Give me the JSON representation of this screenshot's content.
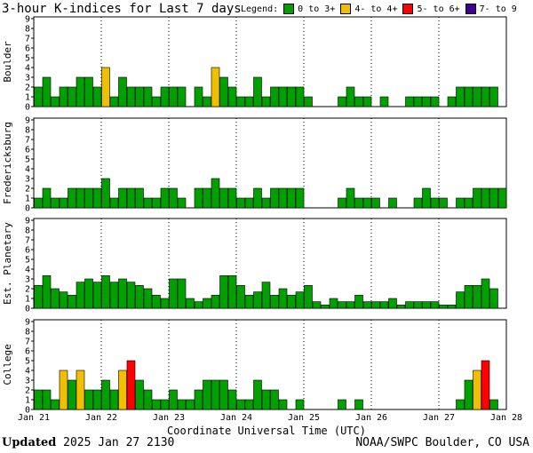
{
  "title": "3-hour K-indices for Last 7 days",
  "legend": {
    "label": "Legend:",
    "items": [
      {
        "label": "0 to 3+",
        "color": "#00a000"
      },
      {
        "label": "4- to 4+",
        "color": "#f0c000"
      },
      {
        "label": "5- to 6+",
        "color": "#ff0000"
      },
      {
        "label": "7- to 9",
        "color": "#400090"
      }
    ]
  },
  "footer": {
    "updated_label": "Updated",
    "updated_value": "2025 Jan 27 2130",
    "source": "NOAA/SWPC Boulder, CO USA"
  },
  "chart_data": [
    {
      "type": "bar",
      "ylabel": "Boulder",
      "ylim": [
        0,
        9
      ],
      "yticks": [
        "0",
        "1",
        "2",
        "3",
        "4",
        "5",
        "6",
        "7",
        "8",
        "9"
      ],
      "xticks": [
        "Jan 21",
        "Jan 22",
        "Jan 23",
        "Jan 24",
        "Jan 25",
        "Jan 26",
        "Jan 27",
        "Jan 28"
      ],
      "values": [
        2,
        3,
        1,
        2,
        2,
        3,
        3,
        2,
        4,
        1,
        3,
        2,
        2,
        2,
        1,
        2,
        2,
        2,
        0,
        2,
        1,
        4,
        3,
        2,
        1,
        1,
        3,
        1,
        2,
        2,
        2,
        2,
        1,
        0,
        0,
        0,
        1,
        2,
        1,
        1,
        0,
        1,
        0,
        0,
        1,
        1,
        1,
        1,
        0,
        1,
        2,
        2,
        2,
        2,
        2,
        0
      ]
    },
    {
      "type": "bar",
      "ylabel": "Fredericksburg",
      "ylim": [
        0,
        9
      ],
      "yticks": [
        "0",
        "1",
        "2",
        "3",
        "4",
        "5",
        "6",
        "7",
        "8",
        "9"
      ],
      "xticks": [
        "Jan 21",
        "Jan 22",
        "Jan 23",
        "Jan 24",
        "Jan 25",
        "Jan 26",
        "Jan 27",
        "Jan 28"
      ],
      "values": [
        1,
        2,
        1,
        1,
        2,
        2,
        2,
        2,
        3,
        1,
        2,
        2,
        2,
        1,
        1,
        2,
        2,
        1,
        0,
        2,
        2,
        3,
        2,
        2,
        1,
        1,
        2,
        1,
        2,
        2,
        2,
        2,
        0,
        0,
        0,
        0,
        1,
        2,
        1,
        1,
        1,
        0,
        1,
        0,
        0,
        1,
        2,
        1,
        1,
        0,
        1,
        1,
        2,
        2,
        2,
        2
      ]
    },
    {
      "type": "bar",
      "ylabel": "Est. Planetary",
      "ylim": [
        0,
        9
      ],
      "yticks": [
        "0",
        "1",
        "2",
        "3",
        "4",
        "5",
        "6",
        "7",
        "8",
        "9"
      ],
      "xticks": [
        "Jan 21",
        "Jan 22",
        "Jan 23",
        "Jan 24",
        "Jan 25",
        "Jan 26",
        "Jan 27",
        "Jan 28"
      ],
      "values": [
        2.33,
        3.33,
        2,
        1.67,
        1.33,
        2.67,
        3,
        2.67,
        3.33,
        2.67,
        3,
        2.67,
        2.33,
        2,
        1.33,
        1,
        3,
        3,
        1,
        0.67,
        1,
        1.33,
        3.33,
        3.33,
        2.33,
        1.33,
        1.67,
        2.67,
        1.33,
        2,
        1.33,
        1.67,
        2.33,
        0.67,
        0.33,
        1,
        0.67,
        0.67,
        1.33,
        0.67,
        0.67,
        0.67,
        1,
        0.33,
        0.67,
        0.67,
        0.67,
        0.67,
        0.33,
        0.33,
        1.67,
        2.33,
        2.33,
        3,
        2,
        0
      ]
    },
    {
      "type": "bar",
      "ylabel": "College",
      "ylim": [
        0,
        9
      ],
      "yticks": [
        "0",
        "1",
        "2",
        "3",
        "4",
        "5",
        "6",
        "7",
        "8",
        "9"
      ],
      "xticks": [
        "Jan 21",
        "Jan 22",
        "Jan 23",
        "Jan 24",
        "Jan 25",
        "Jan 26",
        "Jan 27",
        "Jan 28"
      ],
      "values": [
        2,
        2,
        1,
        4,
        3,
        4,
        2,
        2,
        3,
        2,
        4,
        5,
        3,
        2,
        1,
        1,
        2,
        1,
        1,
        2,
        3,
        3,
        3,
        2,
        1,
        1,
        3,
        2,
        2,
        1,
        0,
        1,
        0,
        0,
        0,
        0,
        1,
        0,
        1,
        0,
        0,
        0,
        0,
        0,
        0,
        0,
        0,
        0,
        0,
        0,
        1,
        3,
        4,
        5,
        1,
        0
      ]
    }
  ],
  "xlabel": "Coordinate Universal Time (UTC)"
}
